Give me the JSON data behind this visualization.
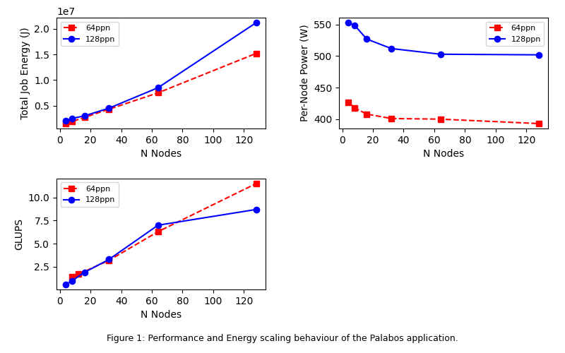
{
  "nodes_64ppn": [
    4,
    8,
    16,
    32,
    64,
    128
  ],
  "nodes_128ppn": [
    4,
    8,
    16,
    32,
    64,
    128
  ],
  "energy_64ppn": [
    1500000.0,
    1900000.0,
    2700000.0,
    4300000.0,
    7500000.0,
    15200000.0
  ],
  "energy_128ppn": [
    2000000.0,
    2500000.0,
    3000000.0,
    4500000.0,
    8500000.0,
    21200000.0
  ],
  "power_64ppn": [
    427,
    418,
    408,
    401,
    400,
    393
  ],
  "power_128ppn": [
    553,
    549,
    527,
    512,
    503,
    502
  ],
  "glups_64ppn": [
    1.4,
    1.7,
    3.2,
    6.3,
    11.5
  ],
  "glups_128ppn": [
    0.6,
    1.0,
    1.9,
    3.3,
    7.0,
    8.7
  ],
  "nodes_64ppn_glups": [
    8,
    12,
    32,
    64,
    128
  ],
  "nodes_128ppn_glups": [
    4,
    8,
    16,
    32,
    64,
    128
  ],
  "color_64ppn": "#ff0000",
  "color_128ppn": "#0000ff",
  "ylabel_top_left": "Total Job Energy (J)",
  "ylabel_top_right": "Per-Node Power (W)",
  "ylabel_bottom": "GLUPS",
  "xlabel": "N Nodes",
  "title": "Figure 1: Performance and Energy scaling behaviour of the Palabos application.",
  "legend_64": "64ppn",
  "legend_128": "128ppn"
}
